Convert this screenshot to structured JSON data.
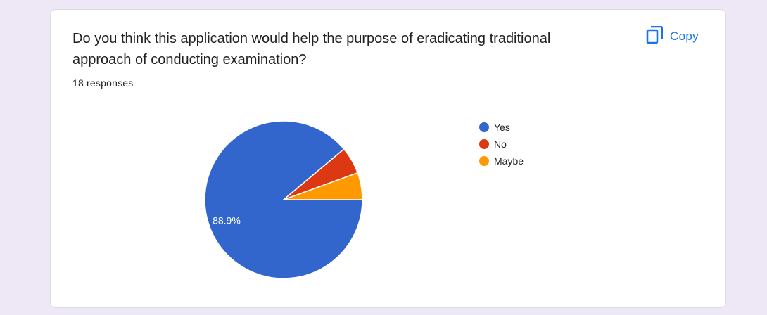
{
  "question": {
    "title": "Do you think this application would help the purpose of eradicating traditional approach of conducting examination?",
    "responses": "18 responses"
  },
  "copy": {
    "label": "Copy",
    "icon": "copy-icon",
    "color": "#1a73e8"
  },
  "chart_data": {
    "type": "pie",
    "title": "",
    "slices": [
      {
        "label": "Yes",
        "value": 16,
        "percent_label": "88.9%",
        "color": "#3366cc"
      },
      {
        "label": "No",
        "value": 1,
        "percent_label": "",
        "color": "#dc3912"
      },
      {
        "label": "Maybe",
        "value": 1,
        "percent_label": "",
        "color": "#ff9900"
      }
    ],
    "legend_position": "right"
  }
}
